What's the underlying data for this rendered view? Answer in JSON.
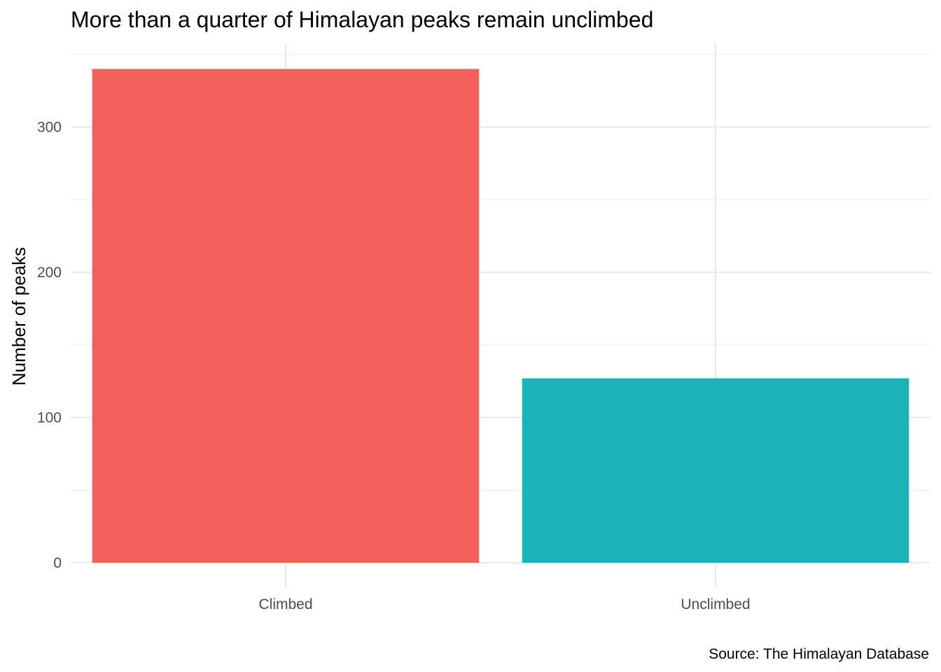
{
  "chart_data": {
    "type": "bar",
    "title": "More than a quarter of Himalayan peaks remain unclimbed",
    "xlabel": "",
    "ylabel": "Number of peaks",
    "caption": "Source: The Himalayan Database",
    "categories": [
      "Climbed",
      "Unclimbed"
    ],
    "values": [
      340,
      127
    ],
    "colors": [
      "#f2605b",
      "#19b3b8"
    ],
    "ylim": [
      0,
      350
    ],
    "yticks": [
      0,
      100,
      200,
      300
    ],
    "ytick_labels": [
      "0",
      "100",
      "200",
      "300"
    ],
    "grid": true,
    "legend": "none"
  }
}
